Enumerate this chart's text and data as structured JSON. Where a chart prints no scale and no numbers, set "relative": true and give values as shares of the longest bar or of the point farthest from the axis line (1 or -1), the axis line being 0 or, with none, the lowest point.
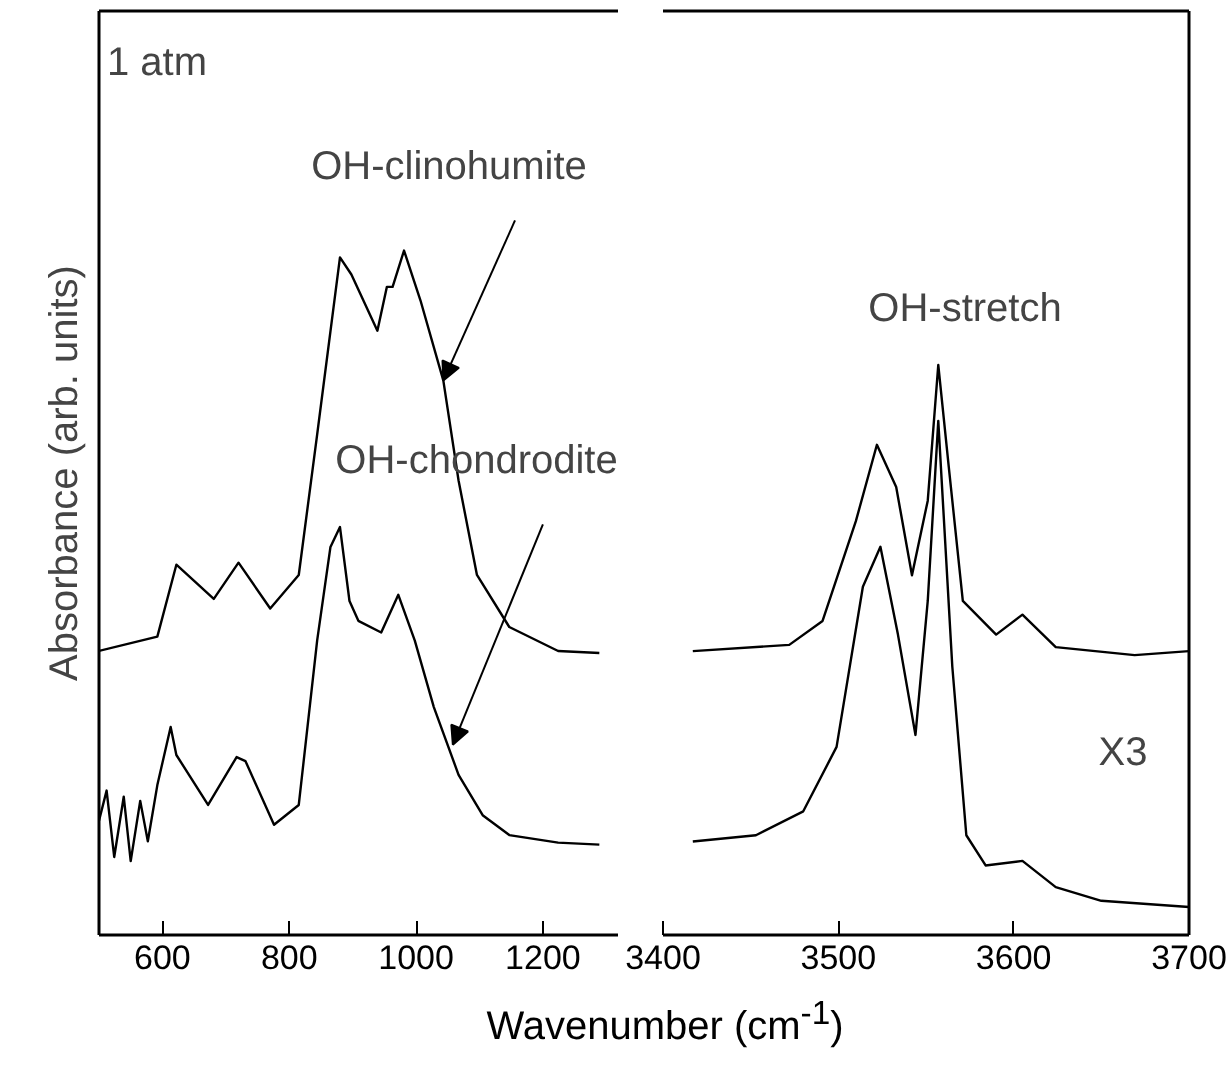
{
  "chart_data": [
    {
      "type": "line",
      "relative": true,
      "ylabel": "Absorbance (arb. units)",
      "xlim": [
        500,
        1320
      ],
      "xticks": [
        600,
        800,
        1000,
        1200
      ],
      "grid": false,
      "tick_labels": "x",
      "annotations": [
        "1 atm",
        {
          "text": "OH-clinohumite",
          "x": 1043,
          "y": 0.81
        },
        {
          "text": "OH-chondrodite",
          "x": 1058,
          "y": 0.278
        }
      ],
      "series": [
        {
          "color": "#000000",
          "x": [
            500,
            592,
            622,
            681,
            720,
            770,
            815,
            844,
            880,
            898,
            939,
            954,
            963,
            981,
            1007,
            1043,
            1067,
            1096,
            1147,
            1224,
            1289
          ],
          "values": [
            0.415,
            0.436,
            0.541,
            0.491,
            0.544,
            0.477,
            0.526,
            0.731,
            0.99,
            0.965,
            0.883,
            0.947,
            0.947,
            1.0,
            0.927,
            0.81,
            0.664,
            0.526,
            0.45,
            0.415,
            0.412
          ]
        },
        {
          "color": "#000000",
          "x": [
            500,
            512,
            524,
            539,
            550,
            565,
            577,
            592,
            613,
            622,
            672,
            717,
            731,
            776,
            815,
            844,
            865,
            880,
            895,
            909,
            945,
            972,
            998,
            1028,
            1067,
            1105,
            1147,
            1224,
            1289
          ],
          "values": [
            0.167,
            0.211,
            0.114,
            0.202,
            0.108,
            0.196,
            0.137,
            0.219,
            0.304,
            0.263,
            0.19,
            0.26,
            0.254,
            0.161,
            0.19,
            0.43,
            0.567,
            0.596,
            0.488,
            0.459,
            0.442,
            0.497,
            0.43,
            0.333,
            0.234,
            0.175,
            0.146,
            0.135,
            0.132
          ]
        }
      ]
    },
    {
      "type": "line",
      "relative": true,
      "xlabel": "Wavenumber (cm$^{-1}$)",
      "xlim": [
        3400,
        3700
      ],
      "xticks": [
        3400,
        3500,
        3600,
        3700
      ],
      "grid": false,
      "tick_labels": "x",
      "annotations": [
        "OH-stretch",
        "X3"
      ],
      "series": [
        {
          "color": "#000000",
          "x": [
            3417,
            3472,
            3491,
            3510,
            3522,
            3533,
            3542,
            3551,
            3557,
            3563,
            3571,
            3590,
            3605,
            3624,
            3669,
            3700
          ],
          "values": [
            0.498,
            0.509,
            0.551,
            0.726,
            0.86,
            0.786,
            0.631,
            0.762,
            1.0,
            0.821,
            0.586,
            0.527,
            0.562,
            0.505,
            0.491,
            0.498
          ]
        },
        {
          "color": "#000000",
          "x": [
            3417,
            3453,
            3480,
            3499,
            3514,
            3524,
            3534,
            3544,
            3551,
            3557,
            3565,
            3573,
            3584,
            3605,
            3624,
            3650,
            3700
          ],
          "values": [
            0.164,
            0.175,
            0.217,
            0.33,
            0.611,
            0.681,
            0.527,
            0.351,
            0.586,
            0.902,
            0.471,
            0.175,
            0.122,
            0.13,
            0.084,
            0.06,
            0.049
          ]
        }
      ]
    }
  ]
}
